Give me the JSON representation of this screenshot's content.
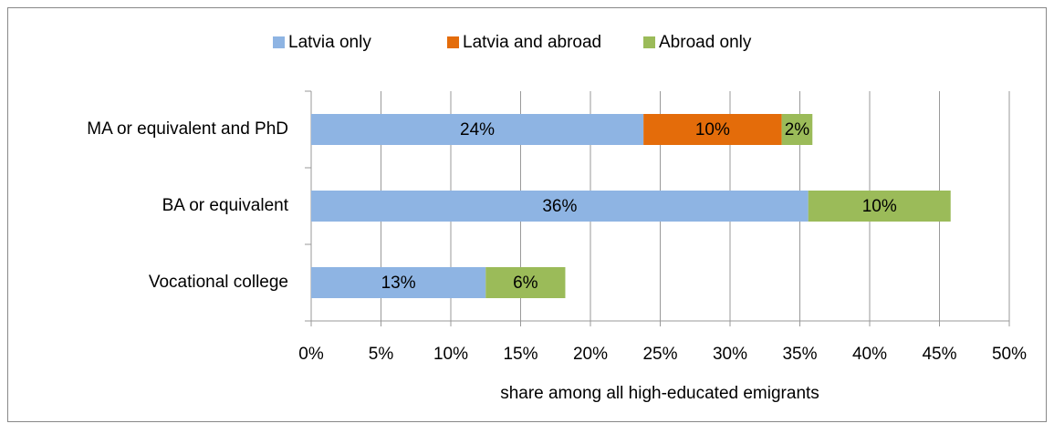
{
  "chart_data": {
    "type": "stacked-barh",
    "categories": [
      "MA or  equivalent and PhD",
      "BA or equivalent",
      "Vocational college"
    ],
    "series": [
      {
        "name": "Latvia only",
        "color": "#8eb4e3",
        "values": [
          23.8,
          35.6,
          12.5
        ],
        "value_labels": [
          "24%",
          "36%",
          "13%"
        ]
      },
      {
        "name": "Latvia and abroad",
        "color": "#e46c0a",
        "values": [
          9.9,
          null,
          null
        ],
        "value_labels": [
          "10%",
          null,
          null
        ]
      },
      {
        "name": "Abroad only",
        "color": "#9bbb59",
        "values": [
          2.2,
          10.2,
          5.7
        ],
        "value_labels": [
          "2%",
          "10%",
          "6%"
        ]
      }
    ],
    "xlim": [
      0,
      50
    ],
    "xticks": [
      {
        "value": 0,
        "label": "0%"
      },
      {
        "value": 5,
        "label": "5%"
      },
      {
        "value": 10,
        "label": "10%"
      },
      {
        "value": 15,
        "label": "15%"
      },
      {
        "value": 20,
        "label": "20%"
      },
      {
        "value": 25,
        "label": "25%"
      },
      {
        "value": 30,
        "label": "30%"
      },
      {
        "value": 35,
        "label": "35%"
      },
      {
        "value": 40,
        "label": "40%"
      },
      {
        "value": 45,
        "label": "45%"
      },
      {
        "value": 50,
        "label": "50%"
      }
    ],
    "x_label": "share among all high-educated emigrants",
    "grid": true,
    "legend": "top"
  }
}
